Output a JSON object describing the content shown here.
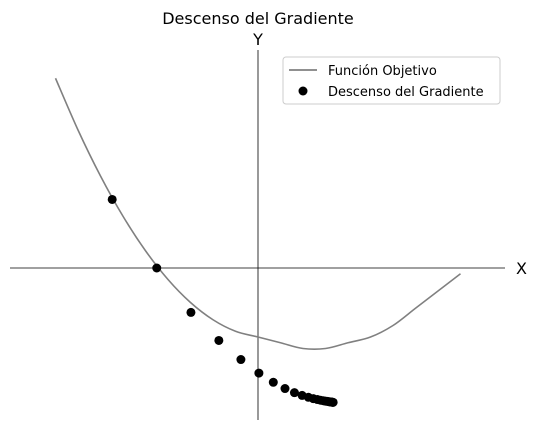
{
  "chart_data": {
    "type": "line",
    "title": "Descenso del Gradiente",
    "xlabel": "X",
    "ylabel": "Y",
    "xlim": [
      -5,
      5
    ],
    "ylim": [
      -6,
      9
    ],
    "grid": false,
    "legend": {
      "placement": "top-right",
      "entries": [
        {
          "label": "Función Objetivo",
          "marker": "line",
          "color": "#808080"
        },
        {
          "label": "Descenso del Gradiente",
          "marker": "dot",
          "color": "#000000"
        }
      ]
    },
    "series": [
      {
        "name": "Función Objetivo",
        "kind": "line",
        "color": "#808080",
        "x": [
          -4.5,
          -4.0,
          -3.5,
          -3.0,
          -2.5,
          -2.0,
          -1.5,
          -1.0,
          -0.5,
          0.0,
          0.5,
          1.0,
          1.5,
          2.0,
          2.5,
          3.0,
          3.5,
          4.0,
          4.5
        ],
        "y": [
          8.25,
          6.0,
          4.0,
          2.25,
          0.75,
          -0.5,
          -1.5,
          -2.25,
          -2.75,
          -3.0,
          -3.25,
          -3.5,
          -3.5,
          -3.25,
          -3.0,
          -2.5,
          -1.75,
          -1.0,
          -0.25
        ]
      },
      {
        "name": "Descenso del Gradiente",
        "kind": "scatter",
        "color": "#000000",
        "x": [
          -3.24,
          -2.25,
          -1.49,
          -0.87,
          -0.38,
          0.02,
          0.34,
          0.6,
          0.81,
          0.98,
          1.12,
          1.23,
          1.32,
          1.39,
          1.45,
          1.5,
          1.54,
          1.57,
          1.59,
          1.61,
          1.63,
          1.64,
          1.65,
          1.66,
          1.67
        ],
        "y": [
          2.98,
          0.0,
          -1.93,
          -3.15,
          -3.98,
          -4.57,
          -4.97,
          -5.24,
          -5.42,
          -5.54,
          -5.62,
          -5.68,
          -5.72,
          -5.75,
          -5.77,
          -5.79,
          -5.8,
          -5.81,
          -5.82,
          -5.82,
          -5.83,
          -5.83,
          -5.83,
          -5.84,
          -5.84
        ]
      }
    ]
  }
}
